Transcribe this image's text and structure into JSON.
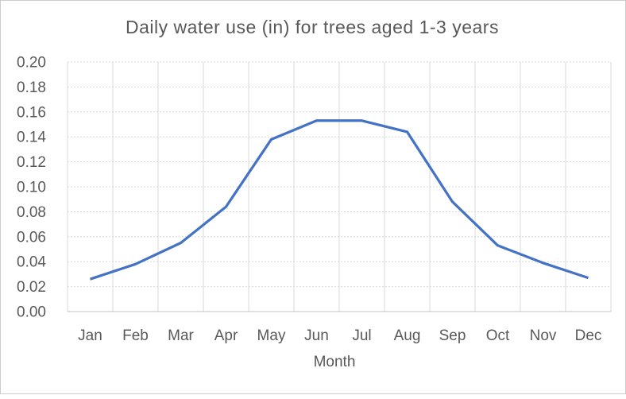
{
  "chart_data": {
    "type": "line",
    "title": "Daily water use (in) for trees aged 1-3 years",
    "xlabel": "Month",
    "ylabel": "",
    "categories": [
      "Jan",
      "Feb",
      "Mar",
      "Apr",
      "May",
      "Jun",
      "Jul",
      "Aug",
      "Sep",
      "Oct",
      "Nov",
      "Dec"
    ],
    "values": [
      0.026,
      0.038,
      0.055,
      0.084,
      0.138,
      0.153,
      0.153,
      0.144,
      0.088,
      0.053,
      0.039,
      0.027
    ],
    "ylim": [
      0,
      0.2
    ],
    "ytick_step": 0.02,
    "ytick_decimals": 2,
    "grid": true,
    "legend": false,
    "colors": {
      "line": "#4472C4",
      "gridline": "#D9D9D9",
      "axis_line": "#BFBFBF",
      "text": "#595959",
      "background": "#FFFFFF",
      "frame_border": "#CCCCCC"
    }
  }
}
